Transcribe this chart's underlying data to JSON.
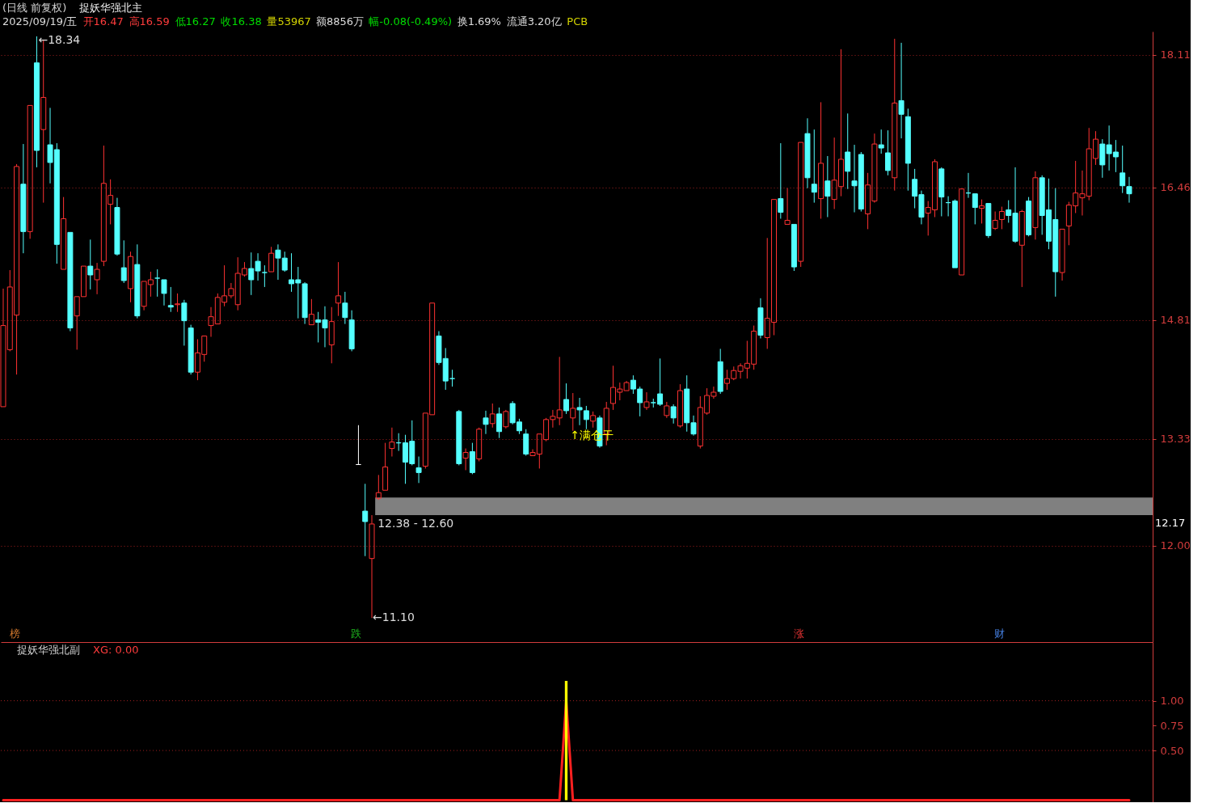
{
  "chart_data": [
    {
      "type": "candlestick",
      "title": "(日线 前复权)",
      "annotations": [
        "捉妖华强北主",
        "2025/09/19/五",
        "开16.47",
        "高16.59",
        "低16.27",
        "收16.38",
        "量53967",
        "额8856万",
        "幅-0.08(-0.49%)",
        "换1.69%",
        "流通3.20亿",
        "PCB",
        "←18.34",
        "←11.10",
        "↑满仓干",
        "12.17",
        "榜",
        "跌",
        "涨",
        "财"
      ],
      "categories": [
        null,
        null,
        null,
        null,
        null,
        null,
        null,
        null,
        null,
        null,
        null,
        null,
        null,
        null,
        null,
        null,
        null,
        null,
        null,
        null,
        null,
        null,
        null,
        null,
        null,
        null,
        null,
        null,
        null,
        null,
        null,
        null,
        null,
        null,
        null,
        null,
        null,
        null,
        null,
        null,
        null,
        null,
        null,
        null,
        null,
        null,
        null,
        null,
        null,
        null,
        null,
        null,
        null,
        null,
        null,
        null,
        null,
        null,
        null,
        null,
        null,
        null,
        null,
        null,
        null,
        null,
        null,
        null,
        null,
        null,
        null,
        null,
        null,
        null,
        null,
        null,
        null,
        null,
        null,
        null,
        null,
        null,
        null,
        null,
        null,
        null,
        null,
        null,
        null,
        null,
        null,
        null,
        null,
        null,
        null,
        null,
        null,
        null,
        null,
        null,
        null,
        null,
        null,
        null,
        null,
        null,
        null,
        null,
        null,
        null,
        null,
        null,
        null,
        null,
        null,
        null,
        null,
        null,
        null,
        null,
        null,
        null,
        null,
        null,
        null,
        null,
        null,
        null,
        null,
        null,
        null,
        null,
        null,
        null,
        null,
        null,
        null,
        null,
        null,
        null,
        null,
        null,
        null,
        null,
        null,
        null,
        null,
        null,
        null,
        null,
        null,
        null,
        null,
        null,
        null,
        null,
        null,
        null,
        null,
        null,
        null,
        null,
        null,
        null,
        null,
        null,
        null,
        null,
        null
      ],
      "ohlc": [
        [
          13.73,
          15.2,
          13.73,
          14.74
        ],
        [
          14.44,
          15.43,
          14.42,
          15.22
        ],
        [
          14.87,
          16.75,
          14.13,
          16.72
        ],
        [
          16.5,
          17.0,
          15.64,
          15.91
        ],
        [
          15.91,
          17.48,
          15.82,
          17.48
        ],
        [
          18.01,
          18.34,
          16.71,
          16.92
        ],
        [
          17.18,
          18.3,
          16.27,
          17.58
        ],
        [
          16.99,
          17.45,
          16.51,
          16.77
        ],
        [
          16.93,
          17.01,
          15.51,
          15.75
        ],
        [
          15.44,
          16.34,
          15.44,
          16.07
        ],
        [
          15.9,
          15.9,
          14.67,
          14.71
        ],
        [
          14.86,
          15.1,
          14.44,
          15.1
        ],
        [
          15.1,
          15.48,
          15.1,
          15.48
        ],
        [
          15.48,
          15.81,
          15.19,
          15.37
        ],
        [
          15.31,
          15.52,
          15.13,
          15.44
        ],
        [
          15.54,
          16.98,
          15.48,
          16.51
        ],
        [
          16.25,
          16.56,
          16.0,
          16.36
        ],
        [
          16.21,
          16.33,
          15.61,
          15.63
        ],
        [
          15.46,
          15.8,
          15.27,
          15.3
        ],
        [
          15.2,
          15.66,
          15.03,
          15.6
        ],
        [
          15.5,
          15.75,
          14.83,
          14.86
        ],
        [
          14.98,
          15.29,
          14.93,
          15.29
        ],
        [
          15.25,
          15.41,
          15.1,
          15.31
        ],
        [
          15.33,
          15.44,
          15.1,
          15.33
        ],
        [
          15.31,
          15.31,
          14.99,
          15.14
        ],
        [
          14.99,
          15.22,
          14.91,
          14.97
        ],
        [
          15.0,
          15.14,
          14.91,
          15.01
        ],
        [
          15.02,
          15.06,
          14.49,
          14.8
        ],
        [
          14.71,
          14.75,
          14.13,
          14.16
        ],
        [
          14.16,
          14.57,
          14.06,
          14.4
        ],
        [
          14.38,
          14.61,
          14.29,
          14.61
        ],
        [
          14.74,
          14.97,
          14.6,
          14.85
        ],
        [
          14.76,
          15.14,
          14.76,
          15.09
        ],
        [
          15.03,
          15.49,
          14.98,
          15.11
        ],
        [
          15.11,
          15.27,
          15.08,
          15.2
        ],
        [
          15.0,
          15.59,
          14.93,
          15.39
        ],
        [
          15.37,
          15.53,
          15.35,
          15.45
        ],
        [
          15.45,
          15.65,
          15.12,
          15.31
        ],
        [
          15.54,
          15.64,
          15.3,
          15.42
        ],
        [
          15.4,
          15.49,
          15.22,
          15.4
        ],
        [
          15.41,
          15.72,
          15.41,
          15.64
        ],
        [
          15.68,
          15.75,
          15.31,
          15.58
        ],
        [
          15.58,
          15.66,
          15.41,
          15.43
        ],
        [
          15.31,
          15.64,
          15.16,
          15.26
        ],
        [
          15.31,
          15.47,
          14.83,
          15.27
        ],
        [
          15.26,
          15.28,
          14.76,
          14.84
        ],
        [
          14.75,
          15.07,
          14.75,
          14.88
        ],
        [
          14.81,
          14.91,
          14.53,
          14.78
        ],
        [
          14.81,
          14.98,
          14.47,
          14.71
        ],
        [
          14.5,
          14.97,
          14.27,
          14.79
        ],
        [
          15.02,
          15.53,
          14.86,
          15.11
        ],
        [
          15.02,
          15.16,
          14.76,
          14.84
        ],
        [
          14.81,
          14.93,
          14.42,
          14.45
        ],
        [
          13.01,
          13.5,
          13.01,
          13.01
        ],
        [
          12.43,
          12.77,
          11.87,
          12.3
        ],
        [
          11.84,
          12.38,
          11.1,
          12.27
        ],
        [
          12.59,
          12.88,
          12.57,
          12.66
        ],
        [
          12.69,
          13.28,
          12.69,
          12.98
        ],
        [
          13.21,
          13.47,
          13.11,
          13.29
        ],
        [
          13.28,
          13.4,
          13.18,
          13.28
        ],
        [
          13.28,
          13.38,
          12.77,
          13.04
        ],
        [
          13.3,
          13.56,
          13.0,
          13.02
        ],
        [
          12.97,
          13.11,
          12.78,
          12.91
        ],
        [
          12.99,
          13.65,
          12.96,
          13.65
        ],
        [
          13.63,
          15.02,
          13.63,
          15.02
        ],
        [
          14.61,
          14.67,
          14.25,
          14.28
        ],
        [
          14.33,
          14.46,
          13.94,
          14.05
        ],
        [
          14.08,
          14.19,
          13.98,
          14.08
        ],
        [
          13.67,
          13.69,
          13.0,
          13.02
        ],
        [
          13.09,
          13.21,
          12.94,
          13.16
        ],
        [
          13.17,
          13.28,
          12.89,
          12.91
        ],
        [
          13.08,
          13.47,
          13.05,
          13.45
        ],
        [
          13.59,
          13.68,
          13.39,
          13.51
        ],
        [
          13.52,
          13.77,
          13.47,
          13.64
        ],
        [
          13.64,
          13.72,
          13.34,
          13.42
        ],
        [
          13.48,
          13.69,
          13.46,
          13.67
        ],
        [
          13.77,
          13.8,
          13.51,
          13.53
        ],
        [
          13.54,
          13.58,
          13.39,
          13.43
        ],
        [
          13.39,
          13.45,
          13.12,
          13.14
        ],
        [
          13.12,
          13.2,
          13.12,
          13.16
        ],
        [
          13.14,
          13.39,
          12.96,
          13.39
        ],
        [
          13.32,
          13.59,
          13.3,
          13.57
        ],
        [
          13.57,
          13.69,
          13.47,
          13.61
        ],
        [
          13.59,
          14.35,
          13.5,
          13.69
        ],
        [
          13.82,
          14.02,
          13.64,
          13.68
        ],
        [
          13.59,
          13.9,
          13.43,
          13.71
        ],
        [
          13.72,
          13.84,
          13.5,
          13.69
        ],
        [
          13.68,
          13.74,
          13.45,
          13.57
        ],
        [
          13.55,
          13.67,
          13.47,
          13.62
        ],
        [
          13.59,
          13.62,
          13.22,
          13.24
        ],
        [
          13.39,
          13.79,
          13.25,
          13.71
        ],
        [
          13.77,
          14.24,
          13.69,
          13.97
        ],
        [
          13.91,
          14.03,
          13.81,
          13.95
        ],
        [
          13.93,
          14.05,
          13.93,
          14.03
        ],
        [
          14.06,
          14.12,
          13.89,
          13.95
        ],
        [
          13.95,
          13.98,
          13.61,
          13.78
        ],
        [
          13.72,
          13.91,
          13.69,
          13.79
        ],
        [
          13.78,
          13.83,
          13.72,
          13.78
        ],
        [
          13.89,
          14.33,
          13.74,
          13.76
        ],
        [
          13.62,
          13.79,
          13.59,
          13.74
        ],
        [
          13.73,
          13.76,
          13.52,
          13.59
        ],
        [
          13.49,
          14.01,
          13.47,
          13.93
        ],
        [
          13.95,
          14.12,
          13.42,
          13.53
        ],
        [
          13.53,
          13.62,
          13.37,
          13.39
        ],
        [
          13.24,
          13.86,
          13.21,
          13.72
        ],
        [
          13.65,
          13.96,
          13.63,
          13.87
        ],
        [
          13.86,
          13.98,
          13.83,
          13.91
        ],
        [
          14.29,
          14.45,
          13.89,
          13.92
        ],
        [
          14.02,
          14.19,
          13.94,
          14.08
        ],
        [
          14.08,
          14.23,
          14.06,
          14.18
        ],
        [
          14.17,
          14.27,
          14.08,
          14.24
        ],
        [
          14.21,
          14.55,
          14.08,
          14.27
        ],
        [
          14.26,
          14.74,
          14.19,
          14.67
        ],
        [
          14.96,
          15.08,
          14.58,
          14.62
        ],
        [
          14.59,
          15.83,
          14.45,
          14.83
        ],
        [
          14.78,
          16.31,
          14.62,
          16.31
        ],
        [
          16.32,
          17.01,
          16.07,
          16.15
        ],
        [
          16.0,
          16.45,
          16.0,
          16.05
        ],
        [
          16.0,
          16.0,
          15.42,
          15.47
        ],
        [
          15.54,
          17.02,
          15.47,
          17.02
        ],
        [
          17.13,
          17.32,
          16.45,
          16.58
        ],
        [
          16.5,
          17.18,
          16.27,
          16.4
        ],
        [
          16.32,
          17.52,
          16.07,
          16.76
        ],
        [
          16.54,
          16.85,
          16.09,
          16.35
        ],
        [
          16.31,
          17.08,
          16.19,
          16.55
        ],
        [
          16.47,
          18.18,
          16.35,
          16.81
        ],
        [
          16.9,
          17.38,
          16.44,
          16.66
        ],
        [
          16.54,
          16.99,
          16.15,
          16.48
        ],
        [
          16.87,
          16.9,
          16.16,
          16.19
        ],
        [
          16.13,
          16.64,
          15.94,
          16.49
        ],
        [
          16.29,
          17.13,
          16.27,
          17.0
        ],
        [
          16.99,
          17.18,
          16.88,
          16.95
        ],
        [
          16.89,
          17.17,
          16.61,
          16.67
        ],
        [
          16.58,
          18.31,
          16.42,
          17.51
        ],
        [
          17.54,
          18.26,
          17.07,
          17.37
        ],
        [
          17.34,
          17.44,
          16.42,
          16.76
        ],
        [
          16.56,
          16.69,
          16.2,
          16.35
        ],
        [
          16.37,
          16.42,
          16.0,
          16.09
        ],
        [
          16.14,
          16.29,
          15.86,
          16.21
        ],
        [
          16.18,
          16.81,
          16.09,
          16.78
        ],
        [
          16.69,
          16.71,
          16.1,
          16.34
        ],
        [
          16.27,
          16.35,
          16.1,
          16.27
        ],
        [
          16.29,
          16.31,
          15.46,
          15.46
        ],
        [
          15.37,
          16.44,
          15.37,
          16.44
        ],
        [
          16.39,
          16.64,
          16.33,
          16.39
        ],
        [
          16.38,
          16.38,
          16.0,
          16.21
        ],
        [
          16.2,
          16.31,
          16.01,
          16.23
        ],
        [
          16.26,
          16.26,
          15.83,
          15.86
        ],
        [
          15.95,
          16.16,
          15.93,
          16.05
        ],
        [
          16.06,
          16.22,
          15.94,
          16.16
        ],
        [
          16.18,
          16.3,
          16.02,
          16.11
        ],
        [
          16.14,
          16.71,
          15.77,
          15.79
        ],
        [
          15.74,
          16.18,
          15.22,
          16.16
        ],
        [
          16.29,
          16.34,
          15.85,
          15.87
        ],
        [
          15.96,
          16.66,
          15.81,
          16.58
        ],
        [
          16.58,
          16.61,
          15.87,
          16.11
        ],
        [
          16.18,
          16.57,
          15.69,
          15.79
        ],
        [
          16.06,
          16.45,
          15.1,
          15.41
        ],
        [
          15.4,
          15.94,
          15.3,
          15.94
        ],
        [
          15.98,
          16.28,
          15.74,
          16.24
        ],
        [
          16.23,
          16.79,
          16.14,
          16.39
        ],
        [
          16.33,
          16.67,
          16.11,
          16.38
        ],
        [
          16.35,
          17.2,
          16.3,
          16.94
        ],
        [
          16.82,
          17.16,
          16.74,
          17.06
        ],
        [
          17.0,
          17.06,
          16.58,
          16.74
        ],
        [
          16.99,
          17.23,
          16.67,
          16.88
        ],
        [
          16.9,
          17.05,
          16.65,
          16.84
        ],
        [
          16.64,
          16.98,
          16.39,
          16.48
        ],
        [
          16.47,
          16.59,
          16.27,
          16.38
        ]
      ],
      "colors": [
        "#ff3232",
        "#ff3232",
        "#ff3232",
        "#54ffff",
        "#ff3232",
        "#54ffff",
        "#ff3232",
        "#54ffff",
        "#54ffff",
        "#ff3232",
        "#54ffff",
        "#ff3232",
        "#ff3232",
        "#54ffff",
        "#ff3232",
        "#ff3232",
        "#ff3232",
        "#54ffff",
        "#54ffff",
        "#ff3232",
        "#54ffff",
        "#ff3232",
        "#ff3232",
        "#54ffff",
        "#54ffff",
        "#54ffff",
        "#ff3232",
        "#54ffff",
        "#54ffff",
        "#ff3232",
        "#ff3232",
        "#ff3232",
        "#ff3232",
        "#ff3232",
        "#ff3232",
        "#ff3232",
        "#ff3232",
        "#54ffff",
        "#54ffff",
        "#54ffff",
        "#ff3232",
        "#54ffff",
        "#54ffff",
        "#54ffff",
        "#54ffff",
        "#54ffff",
        "#ff3232",
        "#54ffff",
        "#54ffff",
        "#ff3232",
        "#ff3232",
        "#54ffff",
        "#54ffff",
        "#ffffff",
        "#54ffff",
        "#ff3232",
        "#ff3232",
        "#ff3232",
        "#ff3232",
        "#54ffff",
        "#54ffff",
        "#54ffff",
        "#54ffff",
        "#ff3232",
        "#ff3232",
        "#54ffff",
        "#54ffff",
        "#54ffff",
        "#54ffff",
        "#ff3232",
        "#54ffff",
        "#ff3232",
        "#54ffff",
        "#ff3232",
        "#54ffff",
        "#ff3232",
        "#54ffff",
        "#54ffff",
        "#54ffff",
        "#ff3232",
        "#ff3232",
        "#ff3232",
        "#ff3232",
        "#ff3232",
        "#54ffff",
        "#ff3232",
        "#54ffff",
        "#54ffff",
        "#ff3232",
        "#54ffff",
        "#ff3232",
        "#ff3232",
        "#ff3232",
        "#ff3232",
        "#54ffff",
        "#54ffff",
        "#ff3232",
        "#54ffff",
        "#54ffff",
        "#ff3232",
        "#54ffff",
        "#ff3232",
        "#54ffff",
        "#54ffff",
        "#ff3232",
        "#ff3232",
        "#ff3232",
        "#54ffff",
        "#ff3232",
        "#ff3232",
        "#ff3232",
        "#ff3232",
        "#ff3232",
        "#54ffff",
        "#ff3232",
        "#ff3232",
        "#54ffff",
        "#ff3232",
        "#54ffff",
        "#ff3232",
        "#54ffff",
        "#54ffff",
        "#ff3232",
        "#54ffff",
        "#ff3232",
        "#ff3232",
        "#54ffff",
        "#54ffff",
        "#54ffff",
        "#ff3232",
        "#ff3232",
        "#54ffff",
        "#54ffff",
        "#ff3232",
        "#54ffff",
        "#54ffff",
        "#54ffff",
        "#54ffff",
        "#ff3232",
        "#ff3232",
        "#54ffff",
        "#54ffff",
        "#54ffff",
        "#ff3232",
        "#54ffff",
        "#54ffff",
        "#ff3232",
        "#54ffff",
        "#ff3232",
        "#ff3232",
        "#54ffff",
        "#54ffff",
        "#ff3232",
        "#54ffff",
        "#ff3232",
        "#54ffff",
        "#54ffff",
        "#54ffff",
        "#ff3232",
        "#ff3232",
        "#ff3232",
        "#ff3232",
        "#ff3232",
        "#ff3232",
        "#54ffff",
        "#54ffff",
        "#54ffff",
        "#54ffff",
        "#54ffff"
      ],
      "ylim": [
        10.8,
        18.4
      ],
      "yticks": [
        18.11,
        16.46,
        14.81,
        13.33,
        {
          "value": 12,
          "label": "12.00"
        }
      ],
      "grid": "y",
      "tick_labels": "y",
      "bands": [
        {
          "axis": "y",
          "from": 12.38,
          "to": 12.6,
          "label": "12.38 - 12.60",
          "color": "#808080"
        }
      ]
    },
    {
      "type": "line",
      "title": "捉妖华强北副",
      "annotations": [
        "XG: 0.00"
      ],
      "categories": [
        null,
        null,
        null,
        null,
        null,
        null,
        null,
        null,
        null,
        null,
        null,
        null,
        null,
        null,
        null,
        null,
        null,
        null,
        null,
        null,
        null,
        null,
        null,
        null,
        null,
        null,
        null,
        null,
        null,
        null,
        null,
        null,
        null,
        null,
        null,
        null,
        null,
        null,
        null,
        null,
        null,
        null,
        null,
        null,
        null,
        null,
        null,
        null,
        null,
        null,
        null,
        null,
        null,
        null,
        null,
        null,
        null,
        null,
        null,
        null,
        null,
        null,
        null,
        null,
        null,
        null,
        null,
        null,
        null,
        null,
        null,
        null,
        null,
        null,
        null,
        null,
        null,
        null,
        null,
        null,
        null,
        null,
        null,
        null,
        null,
        null,
        null,
        null,
        null,
        null,
        null,
        null,
        null,
        null,
        null,
        null,
        null,
        null,
        null,
        null,
        null,
        null,
        null,
        null,
        null,
        null,
        null,
        null,
        null,
        null,
        null,
        null,
        null,
        null,
        null,
        null,
        null,
        null,
        null,
        null,
        null,
        null,
        null,
        null,
        null,
        null,
        null,
        null,
        null,
        null,
        null,
        null,
        null,
        null,
        null,
        null,
        null,
        null,
        null,
        null,
        null,
        null,
        null,
        null,
        null,
        null,
        null,
        null,
        null,
        null,
        null,
        null,
        null,
        null,
        null,
        null,
        null,
        null,
        null,
        null,
        null,
        null,
        null,
        null,
        null,
        null,
        null,
        null,
        null
      ],
      "series": [
        {
          "type": "line",
          "color": "#ff2020",
          "values": [
            0,
            0,
            0,
            0,
            0,
            0,
            0,
            0,
            0,
            0,
            0,
            0,
            0,
            0,
            0,
            0,
            0,
            0,
            0,
            0,
            0,
            0,
            0,
            0,
            0,
            0,
            0,
            0,
            0,
            0,
            0,
            0,
            0,
            0,
            0,
            0,
            0,
            0,
            0,
            0,
            0,
            0,
            0,
            0,
            0,
            0,
            0,
            0,
            0,
            0,
            0,
            0,
            0,
            0,
            0,
            0,
            0,
            0,
            0,
            0,
            0,
            0,
            0,
            0,
            0,
            0,
            0,
            0,
            0,
            0,
            0,
            0,
            0,
            0,
            0,
            0,
            0,
            0,
            0,
            0,
            0,
            0,
            0,
            0,
            1,
            0,
            0,
            0,
            0,
            0,
            0,
            0,
            0,
            0,
            0,
            0,
            0,
            0,
            0,
            0,
            0,
            0,
            0,
            0,
            0,
            0,
            0,
            0,
            0,
            0,
            0,
            0,
            0,
            0,
            0,
            0,
            0,
            0,
            0,
            0,
            0,
            0,
            0,
            0,
            0,
            0,
            0,
            0,
            0,
            0,
            0,
            0,
            0,
            0,
            0,
            0,
            0,
            0,
            0,
            0,
            0,
            0,
            0,
            0,
            0,
            0,
            0,
            0,
            0,
            0,
            0,
            0,
            0,
            0,
            0,
            0,
            0,
            0,
            0,
            0,
            0,
            0,
            0,
            0,
            0,
            0,
            0,
            0,
            0
          ]
        },
        {
          "type": "bar",
          "color": "#ffff00",
          "values": [
            null,
            null,
            null,
            null,
            null,
            null,
            null,
            null,
            null,
            null,
            null,
            null,
            null,
            null,
            null,
            null,
            null,
            null,
            null,
            null,
            null,
            null,
            null,
            null,
            null,
            null,
            null,
            null,
            null,
            null,
            null,
            null,
            null,
            null,
            null,
            null,
            null,
            null,
            null,
            null,
            null,
            null,
            null,
            null,
            null,
            null,
            null,
            null,
            null,
            null,
            null,
            null,
            null,
            null,
            null,
            null,
            null,
            null,
            null,
            null,
            null,
            null,
            null,
            null,
            null,
            null,
            null,
            null,
            null,
            null,
            null,
            null,
            null,
            null,
            null,
            null,
            null,
            null,
            null,
            null,
            null,
            null,
            null,
            null,
            1.2,
            null,
            null,
            null,
            null,
            null,
            null,
            null,
            null,
            null,
            null,
            null,
            null,
            null,
            null,
            null,
            null,
            null,
            null,
            null,
            null,
            null,
            null,
            null,
            null,
            null,
            null,
            null,
            null,
            null,
            null,
            null,
            null,
            null,
            null,
            null,
            null,
            null,
            null,
            null,
            null,
            null,
            null,
            null,
            null,
            null,
            null,
            null,
            null,
            null,
            null,
            null,
            null,
            null,
            null,
            null,
            null,
            null,
            null,
            null,
            null,
            null,
            null,
            null,
            null,
            null,
            null,
            null,
            null,
            null,
            null,
            null,
            null,
            null,
            null,
            null,
            null,
            null,
            null,
            null,
            null,
            null,
            null,
            null,
            null
          ]
        }
      ],
      "ylim": [
        -0.02,
        1.59
      ],
      "yticks": [
        {
          "value": 1,
          "label": "1.00"
        },
        0.75,
        {
          "value": 0.5,
          "label": "0.50"
        }
      ],
      "tick_labels": "y",
      "ref_lines": [
        {
          "axis": "y",
          "value": 1,
          "color": "#a01e1e",
          "line_style": "dotted"
        },
        {
          "axis": "y",
          "value": 0.5,
          "color": "#a01e1e",
          "line_style": "dotted"
        }
      ]
    }
  ]
}
